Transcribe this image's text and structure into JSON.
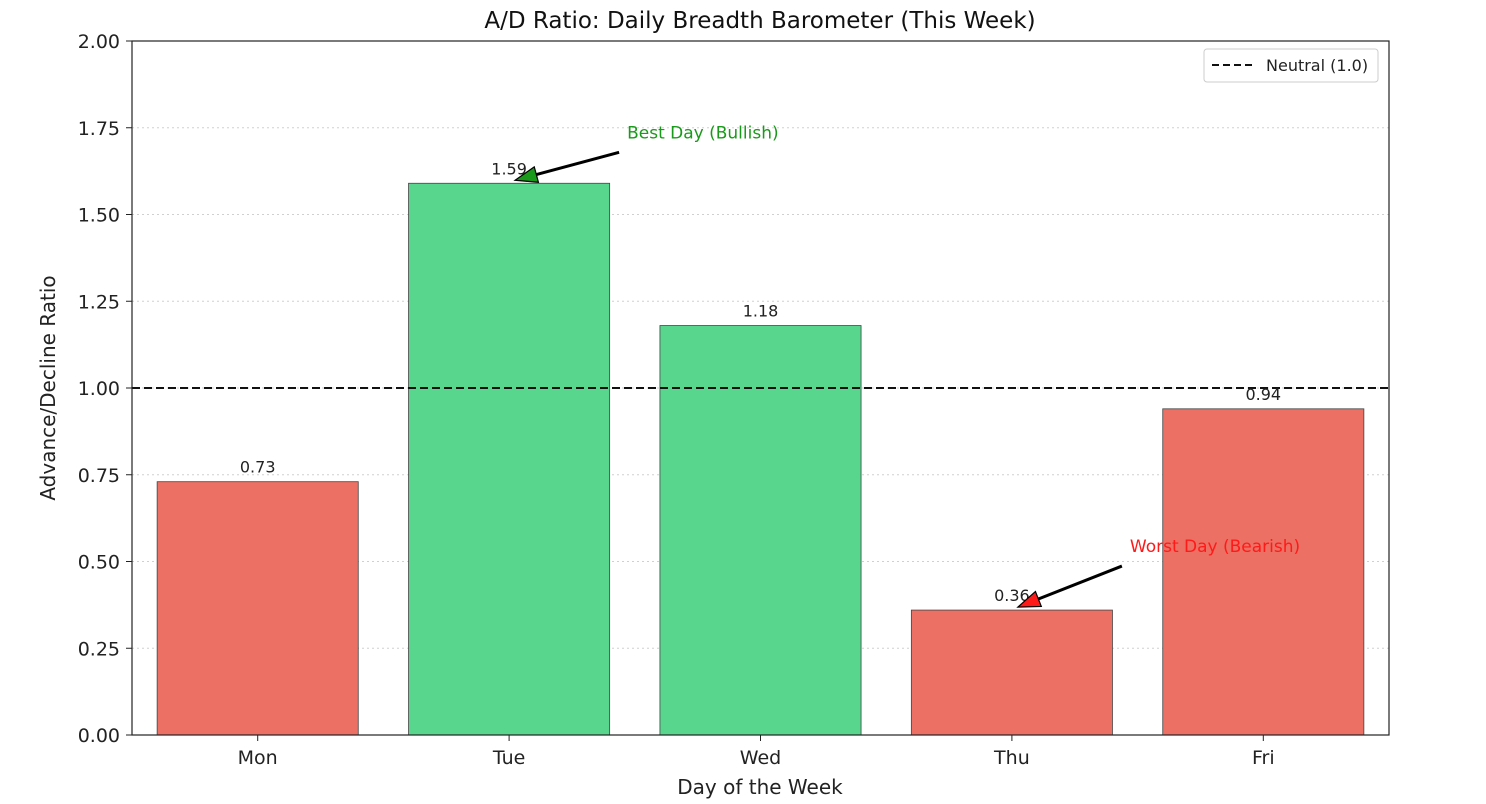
{
  "chart_data": {
    "type": "bar",
    "title": "A/D Ratio: Daily Breadth Barometer (This Week)",
    "xlabel": "Day of the Week",
    "ylabel": "Advance/Decline Ratio",
    "categories": [
      "Mon",
      "Tue",
      "Wed",
      "Thu",
      "Fri"
    ],
    "values": [
      0.73,
      1.59,
      1.18,
      0.36,
      0.94
    ],
    "value_labels": [
      "0.73",
      "1.59",
      "1.18",
      "0.36",
      "0.94"
    ],
    "ylim": [
      0,
      2.0
    ],
    "yticks": [
      "0.00",
      "0.25",
      "0.50",
      "0.75",
      "1.00",
      "1.25",
      "1.50",
      "1.75",
      "2.00"
    ],
    "grid": "horizontal dotted",
    "colors": {
      "above": "#58d68d",
      "below": "#ec7063",
      "edge": "#444444"
    },
    "reference_line": {
      "value": 1.0,
      "label": "Neutral (1.0)",
      "style": "dashed",
      "color": "#111111"
    },
    "legend": {
      "placement": "top-right"
    },
    "annotations": [
      {
        "text": "Best Day (Bullish)",
        "target": "Tue",
        "color": "#1a9a1a"
      },
      {
        "text": "Worst Day (Bearish)",
        "target": "Thu",
        "color": "#ff1a1a"
      }
    ]
  }
}
